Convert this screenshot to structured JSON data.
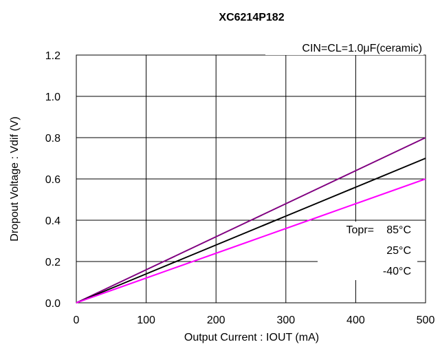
{
  "chart_data": {
    "type": "line",
    "title": "XC6214P182",
    "xlabel": "Output Current : IOUT (mA)",
    "ylabel": "Dropout Voltage : Vdif (V)",
    "condition": "CIN=CL=1.0μF(ceramic)",
    "xlim": [
      0,
      500
    ],
    "ylim": [
      0,
      1.2
    ],
    "xticks": [
      "0",
      "100",
      "200",
      "300",
      "400",
      "500"
    ],
    "yticks": [
      "0.0",
      "0.2",
      "0.4",
      "0.6",
      "0.8",
      "1.0",
      "1.2"
    ],
    "grid": true,
    "legend_header": "Topr=",
    "series": [
      {
        "name": "85°C",
        "color": "#800080",
        "x": [
          0,
          50,
          100,
          150,
          200,
          250,
          300,
          350,
          400,
          450,
          500
        ],
        "y": [
          0,
          0.08,
          0.16,
          0.24,
          0.32,
          0.4,
          0.48,
          0.56,
          0.64,
          0.72,
          0.8
        ]
      },
      {
        "name": "25°C",
        "color": "#000000",
        "x": [
          0,
          50,
          100,
          150,
          200,
          250,
          300,
          350,
          400,
          450,
          500
        ],
        "y": [
          0,
          0.07,
          0.14,
          0.21,
          0.28,
          0.35,
          0.42,
          0.49,
          0.56,
          0.63,
          0.7
        ]
      },
      {
        "name": "-40°C",
        "color": "#ff00ff",
        "x": [
          0,
          50,
          100,
          150,
          200,
          250,
          300,
          350,
          400,
          450,
          500
        ],
        "y": [
          0,
          0.06,
          0.12,
          0.18,
          0.24,
          0.3,
          0.36,
          0.42,
          0.48,
          0.54,
          0.6
        ]
      }
    ]
  }
}
